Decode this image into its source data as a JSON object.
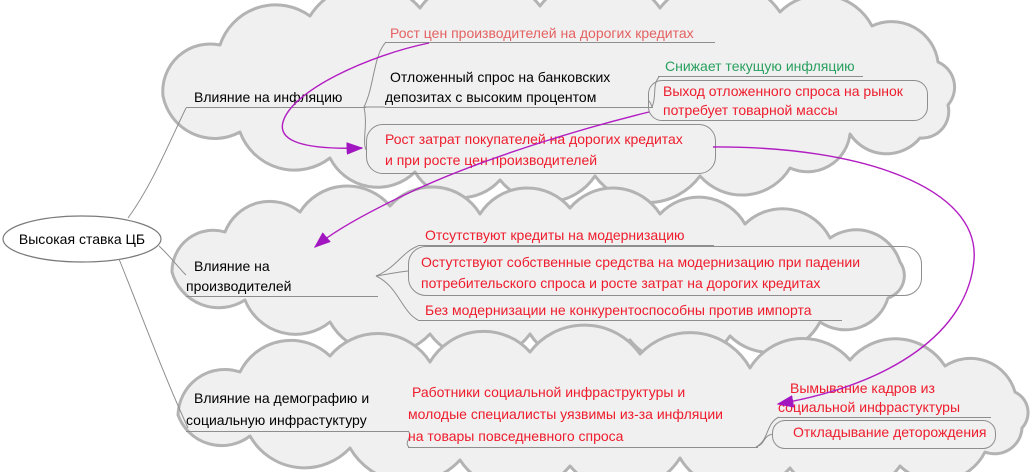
{
  "root": {
    "label": "Высокая ставка ЦБ"
  },
  "branches": [
    {
      "label": "Влияние на инфляцию",
      "children": [
        {
          "text": "Рост цен производителей на дорогих кредитах"
        },
        {
          "text": "Отложенный спрос на банковских\nдепозитах с высоким процентом",
          "children": [
            {
              "text": "Снижает текущую инфляцию"
            },
            {
              "text": "Выход отложенного спроса на рынок\nпотребует товарной массы"
            }
          ]
        },
        {
          "text": "Рост затрат покупателей на дорогих кредитах\nи при росте цен производителей"
        }
      ]
    },
    {
      "label": "Влияние на производителей",
      "children": [
        {
          "text": "Отсутствуют кредиты на модернизацию"
        },
        {
          "text": "Остутствуют собственные средства на модернизацию при падении\nпотребительского спроса и росте затрат на дорогих кредитах"
        },
        {
          "text": "Без модернизации не конкурентоспособны против импорта"
        }
      ]
    },
    {
      "label": "Влияние на демографию и\nсоциальную инфрастуктуру",
      "children": [
        {
          "text": "Работники социальной инфраструктуры и\nмолодые специалисты уязвимы из-за инфляции\nна товары повседневного спроса",
          "children": [
            {
              "text": "Вымывание кадров из\nсоциальной инфрастуктуры"
            },
            {
              "text": "Откладывание деторождения"
            }
          ]
        }
      ]
    }
  ],
  "arrows": [
    {
      "from": "Рост цен производителей на дорогих кредитах",
      "to": "Рост затрат покупателей на дорогих кредитах и при росте цен производителей"
    },
    {
      "from": "Выход отложенного спроса на рынок потребует товарной массы",
      "to": "Влияние на производителей"
    },
    {
      "from": "Рост затрат покупателей на дорогих кредитах и при росте цен производителей",
      "to": "Работники социальной инфраструктуры и молодые специалисты уязвимы из-за инфляции на товары повседневного спроса"
    }
  ],
  "colors": {
    "node_red": "#ee1c2c",
    "node_salmon": "#e46161",
    "node_green": "#2aa05f",
    "node_black": "#000000",
    "arrow_purple": "#b21dc2",
    "cloud_fill": "#f0f0f0",
    "cloud_border": "#b3b3b3",
    "edge_grey": "#8e8e8e"
  }
}
